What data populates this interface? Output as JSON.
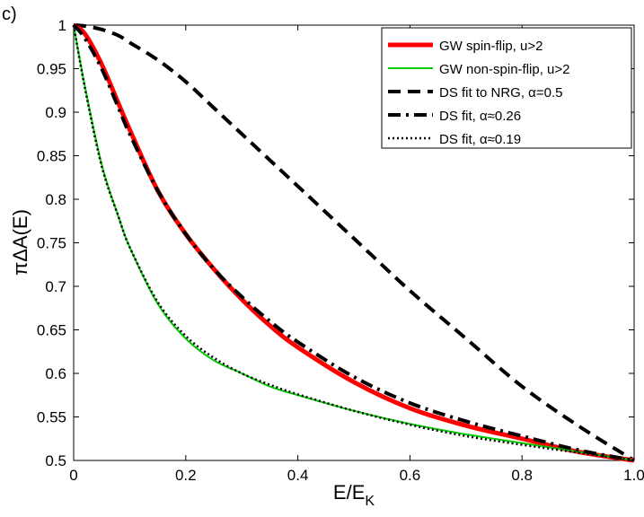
{
  "chart_data": {
    "type": "line",
    "panel_label": "c)",
    "xlabel": "E/E",
    "xlabel_sub": "K",
    "ylabel": "πΔA(E)",
    "xlim": [
      0,
      1.0
    ],
    "ylim": [
      0.5,
      1
    ],
    "xticks": [
      "0",
      "0.2",
      "0.4",
      "0.6",
      "0.8",
      "1.0"
    ],
    "xtick_values": [
      0,
      0.2,
      0.4,
      0.6,
      0.8,
      1.0
    ],
    "yticks": [
      "0.5",
      "0.55",
      "0.6",
      "0.65",
      "0.7",
      "0.75",
      "0.8",
      "0.85",
      "0.9",
      "0.95",
      "1"
    ],
    "ytick_values": [
      0.5,
      0.55,
      0.6,
      0.65,
      0.7,
      0.75,
      0.8,
      0.85,
      0.9,
      0.95,
      1.0
    ],
    "grid": false,
    "legend_position": "top-right",
    "x": [
      0,
      0.02,
      0.05,
      0.08,
      0.1,
      0.15,
      0.2,
      0.25,
      0.3,
      0.35,
      0.4,
      0.5,
      0.6,
      0.7,
      0.8,
      0.9,
      1.0
    ],
    "series": [
      {
        "name": "GW spin-flip, u>2",
        "color": "#ff0000",
        "style": "solid-thick",
        "values": [
          1.0,
          0.99,
          0.955,
          0.91,
          0.88,
          0.81,
          0.76,
          0.72,
          0.685,
          0.655,
          0.63,
          0.59,
          0.56,
          0.54,
          0.525,
          0.51,
          0.5
        ]
      },
      {
        "name": "GW non-spin-flip, u>2",
        "color": "#00cc00",
        "style": "solid",
        "values": [
          1.0,
          0.93,
          0.84,
          0.78,
          0.745,
          0.68,
          0.64,
          0.615,
          0.6,
          0.585,
          0.575,
          0.557,
          0.542,
          0.53,
          0.52,
          0.51,
          0.5
        ]
      },
      {
        "name": "DS fit to NRG, α=0.5",
        "color": "#000000",
        "style": "dashed",
        "values": [
          1.0,
          0.999,
          0.995,
          0.988,
          0.98,
          0.96,
          0.935,
          0.905,
          0.875,
          0.845,
          0.815,
          0.755,
          0.695,
          0.64,
          0.585,
          0.54,
          0.5
        ]
      },
      {
        "name": "DS fit, α≈0.26",
        "color": "#000000",
        "style": "dashdot",
        "values": [
          1.0,
          0.985,
          0.95,
          0.905,
          0.875,
          0.81,
          0.76,
          0.72,
          0.688,
          0.66,
          0.636,
          0.596,
          0.566,
          0.545,
          0.528,
          0.512,
          0.5
        ]
      },
      {
        "name": "DS fit, α≈0.19",
        "color": "#000000",
        "style": "dotted",
        "values": [
          1.0,
          0.928,
          0.838,
          0.78,
          0.745,
          0.682,
          0.643,
          0.618,
          0.6,
          0.587,
          0.576,
          0.557,
          0.541,
          0.528,
          0.518,
          0.509,
          0.5
        ]
      }
    ]
  }
}
